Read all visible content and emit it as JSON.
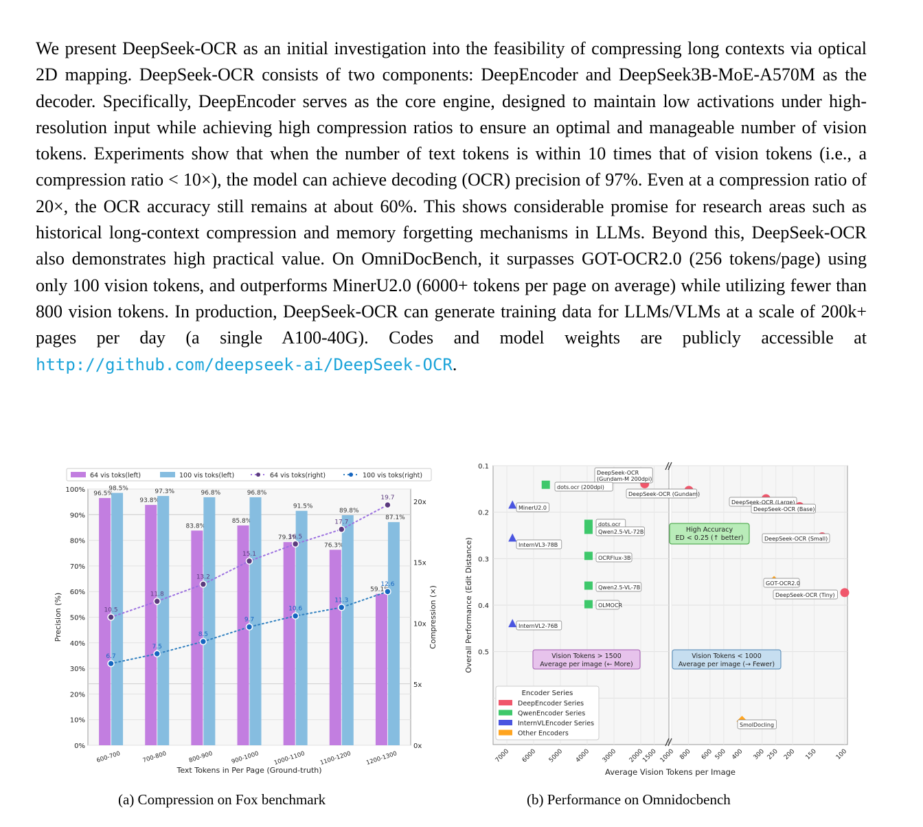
{
  "abstract": {
    "text": "We present DeepSeek-OCR as an initial investigation into the feasibility of compressing long contexts via optical 2D mapping. DeepSeek-OCR consists of two components: DeepEncoder and DeepSeek3B-MoE-A570M as the decoder. Specifically, DeepEncoder serves as the core engine, designed to maintain low activations under high-resolution input while achieving high compression ratios to ensure an optimal and manageable number of vision tokens. Experiments show that when the number of text tokens is within 10 times that of vision tokens (i.e., a compression ratio < 10×), the model can achieve decoding (OCR) precision of 97%. Even at a compression ratio of 20×, the OCR accuracy still remains at about 60%. This shows considerable promise for research areas such as historical long-context compression and memory forgetting mechanisms in LLMs. Beyond this, DeepSeek-OCR also demonstrates high practical value. On OmniDocBench, it surpasses GOT-OCR2.0 (256 tokens/page) using only 100 vision tokens, and outperforms MinerU2.0 (6000+ tokens per page on average) while utilizing fewer than 800 vision tokens. In production, DeepSeek-OCR can generate training data for LLMs/VLMs at a scale of 200k+ pages per day (a single A100-40G). Codes and model weights are publicly accessible at",
    "link": "http://github.com/deepseek-ai/DeepSeek-OCR",
    "end": "."
  },
  "captions": {
    "a": "(a) Compression on Fox benchmark",
    "b": "(b) Performance on Omnidocbench"
  },
  "chart_data": [
    {
      "type": "bar",
      "title": "",
      "xlabel": "Text Tokens in Per Page (Ground-truth)",
      "ylabel": "Precision (%)",
      "y2label": "Compression (×)",
      "categories": [
        "600-700",
        "700-800",
        "800-900",
        "900-1000",
        "1000-1100",
        "1100-1200",
        "1200-1300"
      ],
      "ylim": [
        0,
        100
      ],
      "y2lim": [
        0,
        21
      ],
      "yticks": [
        "0%",
        "10%",
        "20%",
        "30%",
        "40%",
        "50%",
        "60%",
        "70%",
        "80%",
        "90%",
        "100%"
      ],
      "y2ticks": [
        "0x",
        "5x",
        "10x",
        "15x",
        "20x"
      ],
      "series": [
        {
          "name": "64 vis toks(left)",
          "kind": "bar",
          "color": "#c27ee0",
          "values": [
            96.5,
            93.8,
            83.8,
            85.8,
            79.3,
            76.3,
            59.1
          ],
          "labels": [
            "96.5%",
            "93.8%",
            "83.8%",
            "85.8%",
            "79.3%",
            "76.3%",
            "59.1%"
          ]
        },
        {
          "name": "100 vis toks(left)",
          "kind": "bar",
          "color": "#86bde0",
          "values": [
            98.5,
            97.3,
            96.8,
            96.8,
            91.5,
            89.8,
            87.1
          ],
          "labels": [
            "98.5%",
            "97.3%",
            "96.8%",
            "96.8%",
            "91.5%",
            "89.8%",
            "87.1%"
          ]
        },
        {
          "name": "64 vis toks(right)",
          "kind": "line",
          "color": "#9b6fe0",
          "marker": "#5b3a7e",
          "values": [
            10.5,
            11.8,
            13.2,
            15.1,
            16.5,
            17.7,
            19.7
          ],
          "labels": [
            "10.5",
            "11.8",
            "13.2",
            "15.1",
            "16.5",
            "17.7",
            "19.7"
          ]
        },
        {
          "name": "100 vis toks(right)",
          "kind": "line",
          "color": "#2f7fbf",
          "marker": "#1565c0",
          "values": [
            6.7,
            7.5,
            8.5,
            9.7,
            10.6,
            11.3,
            12.6
          ],
          "labels": [
            "6.7",
            "7.5",
            "8.5",
            "9.7",
            "10.6",
            "11.3",
            "12.6"
          ]
        }
      ]
    },
    {
      "type": "scatter",
      "title": "",
      "xlabel": "Average Vision Tokens per Image",
      "ylabel": "Overall Performance (Edit Distance)",
      "xlim": [
        7000,
        100
      ],
      "ylim": [
        0.1,
        0.7
      ],
      "x_axis_note": "broken axis: 7000–1000 on left panel, 1000–100 on right panel (log scale)",
      "xticks": [
        "7000",
        "6000",
        "5000",
        "4000",
        "3000",
        "2000",
        "1500",
        "1000",
        "800",
        "600",
        "500",
        "400",
        "300",
        "250",
        "200",
        "150",
        "100"
      ],
      "yticks": [
        "0.1",
        "0.2",
        "0.3",
        "0.4",
        "0.5"
      ],
      "legend_title": "Encoder Series",
      "legend": [
        {
          "name": "DeepEncoder Series",
          "color": "#f0566b"
        },
        {
          "name": "QwenEncoder Series",
          "color": "#3ec86b"
        },
        {
          "name": "InternVLEncoder Series",
          "color": "#4a55e0"
        },
        {
          "name": "Other Encoders",
          "color": "#ffa41f"
        }
      ],
      "points": [
        {
          "label": "DeepSeek-OCR\n(Gundam-M 200dpi)",
          "series": "DeepEncoder Series",
          "x": 1853,
          "y": 0.139
        },
        {
          "label": "DeepSeek-OCR (Gundam)",
          "series": "DeepEncoder Series",
          "x": 795,
          "y": 0.153
        },
        {
          "label": "DeepSeek-OCR (Large)",
          "series": "DeepEncoder Series",
          "x": 285,
          "y": 0.171
        },
        {
          "label": "DeepSeek-OCR (Base)",
          "series": "DeepEncoder Series",
          "x": 182,
          "y": 0.188
        },
        {
          "label": "DeepSeek-OCR (Small)",
          "series": "DeepEncoder Series",
          "x": 135,
          "y": 0.253
        },
        {
          "label": "DeepSeek-OCR (Tiny)",
          "series": "DeepEncoder Series",
          "x": 100,
          "y": 0.373
        },
        {
          "label": "dots.ocr (200dpi)",
          "series": "QwenEncoder Series",
          "x": 5545,
          "y": 0.141
        },
        {
          "label": "dots.ocr",
          "series": "QwenEncoder Series",
          "x": 3950,
          "y": 0.225
        },
        {
          "label": "Qwen2.5-VL-72B",
          "series": "QwenEncoder Series",
          "x": 3950,
          "y": 0.238
        },
        {
          "label": "OCRFlux-3B",
          "series": "QwenEncoder Series",
          "x": 3950,
          "y": 0.294
        },
        {
          "label": "Qwen2.5-VL-7B",
          "series": "QwenEncoder Series",
          "x": 3950,
          "y": 0.358
        },
        {
          "label": "OLMOCR",
          "series": "QwenEncoder Series",
          "x": 3950,
          "y": 0.398
        },
        {
          "label": "MinerU2.0",
          "series": "InternVLEncoder Series",
          "x": 6790,
          "y": 0.185
        },
        {
          "label": "InternVL3-78B",
          "series": "InternVLEncoder Series",
          "x": 6790,
          "y": 0.256
        },
        {
          "label": "InternVL2-76B",
          "series": "InternVLEncoder Series",
          "x": 6790,
          "y": 0.44
        },
        {
          "label": "GOT-OCR2.0",
          "series": "Other Encoders",
          "x": 256,
          "y": 0.349
        },
        {
          "label": "SmolDocling",
          "series": "Other Encoders",
          "x": 392,
          "y": 0.65
        }
      ],
      "annotations": [
        {
          "line1": "High Accuracy",
          "line2": "ED < 0.25 (↑ better)"
        },
        {
          "line1": "Vision Tokens > 1500",
          "line2": "Average per image (← More)"
        },
        {
          "line1": "Vision Tokens < 1000",
          "line2": "Average per image (→ Fewer)"
        }
      ]
    }
  ]
}
